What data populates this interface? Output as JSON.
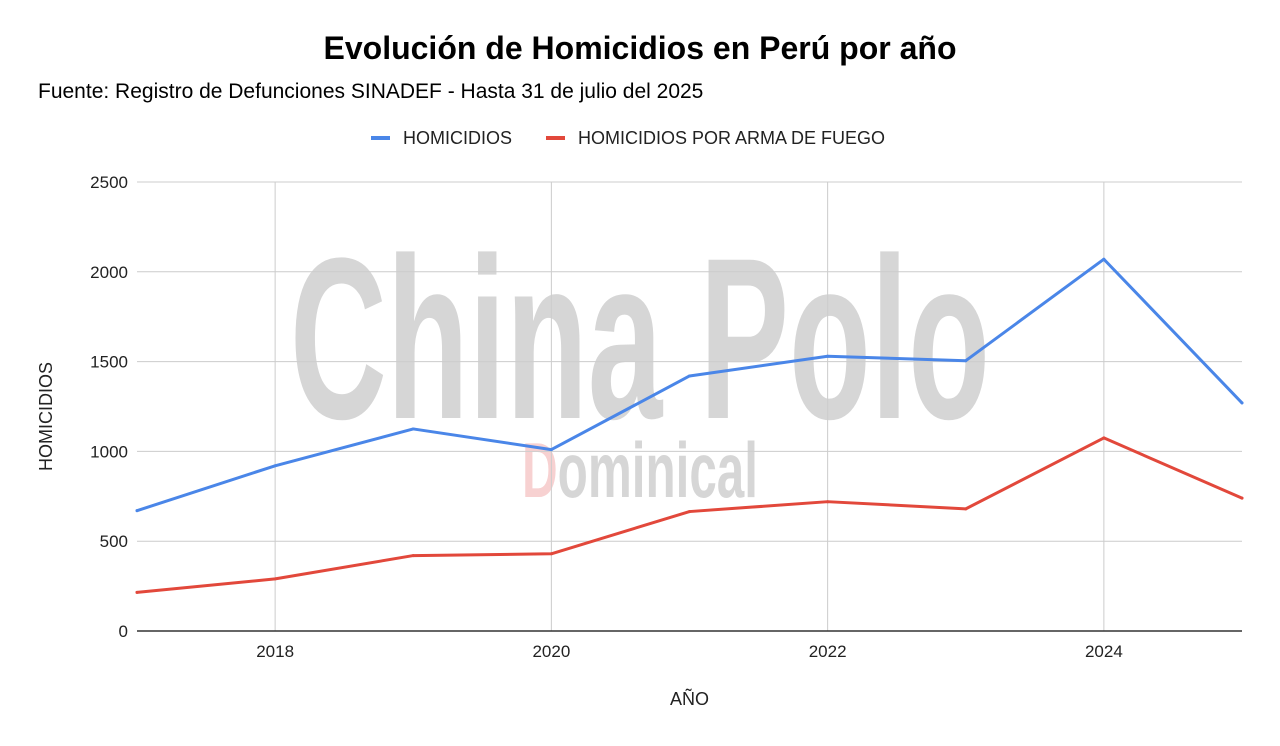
{
  "title": "Evolución de Homicidios en Perú por año",
  "subtitle": "Fuente: Registro de Defunciones SINADEF - Hasta 31 de julio del 2025",
  "watermark": {
    "line1": "China Polo",
    "line2_first": "D",
    "line2_rest": "ominical",
    "colors": {
      "gray": "#cfcfcf",
      "pink": "#f6c9c9"
    }
  },
  "chart_data": {
    "type": "line",
    "title": "Evolución de Homicidios en Perú por año",
    "subtitle": "Fuente: Registro de Defunciones SINADEF - Hasta 31 de julio del 2025",
    "xlabel": "AÑO",
    "ylabel": "HOMICIDIOS",
    "x": [
      2017,
      2018,
      2019,
      2020,
      2021,
      2022,
      2023,
      2024,
      2025
    ],
    "xlim": [
      2017,
      2025
    ],
    "ylim": [
      0,
      2500
    ],
    "xticks": [
      2018,
      2020,
      2022,
      2024
    ],
    "yticks": [
      0,
      500,
      1000,
      1500,
      2000,
      2500
    ],
    "grid": true,
    "legend": "top-center",
    "series": [
      {
        "name": "HOMICIDIOS",
        "color": "#4a86e8",
        "values": [
          670,
          920,
          1125,
          1010,
          1420,
          1530,
          1505,
          2070,
          1270
        ]
      },
      {
        "name": "HOMICIDIOS POR ARMA DE FUEGO",
        "color": "#e2483b",
        "values": [
          215,
          290,
          420,
          430,
          665,
          720,
          680,
          1075,
          740
        ]
      }
    ]
  }
}
